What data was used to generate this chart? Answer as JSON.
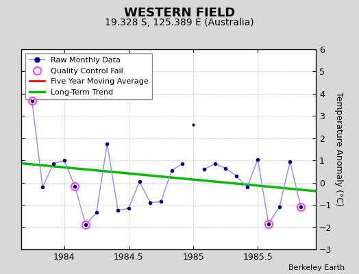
{
  "title": "WESTERN FIELD",
  "subtitle": "19.328 S, 125.389 E (Australia)",
  "credit": "Berkeley Earth",
  "ylabel": "Temperature Anomaly (°C)",
  "ylim": [
    -3,
    6
  ],
  "yticks": [
    -3,
    -2,
    -1,
    0,
    1,
    2,
    3,
    4,
    5,
    6
  ],
  "xlim": [
    1983.67,
    1985.95
  ],
  "background_color": "#d8d8d8",
  "plot_bg_color": "#ffffff",
  "raw_x_seg1": [
    1983.75,
    1983.833,
    1983.917,
    1984.0,
    1984.083,
    1984.167,
    1984.25,
    1984.333,
    1984.417,
    1984.5,
    1984.583,
    1984.667,
    1984.75,
    1984.833,
    1984.917
  ],
  "raw_y_seg1": [
    3.7,
    -0.2,
    0.85,
    1.0,
    -0.15,
    -1.9,
    -1.35,
    1.75,
    -1.25,
    -1.15,
    0.05,
    -0.9,
    -0.85,
    0.55,
    0.85
  ],
  "raw_x_seg2": [
    1985.083,
    1985.167,
    1985.25,
    1985.333,
    1985.417,
    1985.5,
    1985.583,
    1985.667,
    1985.75,
    1985.833
  ],
  "raw_y_seg2": [
    0.6,
    0.85,
    0.65,
    0.3,
    -0.2,
    1.05,
    -1.85,
    -1.1,
    0.95,
    -1.1
  ],
  "isolated_x": [
    1985.0
  ],
  "isolated_y": [
    2.6
  ],
  "qc_fail_x": [
    1983.75,
    1984.083,
    1984.167,
    1985.583,
    1985.833
  ],
  "qc_fail_y": [
    3.7,
    -0.15,
    -1.9,
    -1.85,
    -1.1
  ],
  "trend_x": [
    1983.67,
    1985.95
  ],
  "trend_y": [
    0.87,
    -0.38
  ],
  "raw_line_color": "#8888ff",
  "raw_dot_color": "#000080",
  "isolated_color": "#000000",
  "qc_color": "#ff44ff",
  "trend_color": "#00bb00",
  "mavg_color": "#ff0000",
  "title_fontsize": 13,
  "subtitle_fontsize": 10,
  "credit_fontsize": 8,
  "tick_fontsize": 9,
  "legend_fontsize": 8
}
